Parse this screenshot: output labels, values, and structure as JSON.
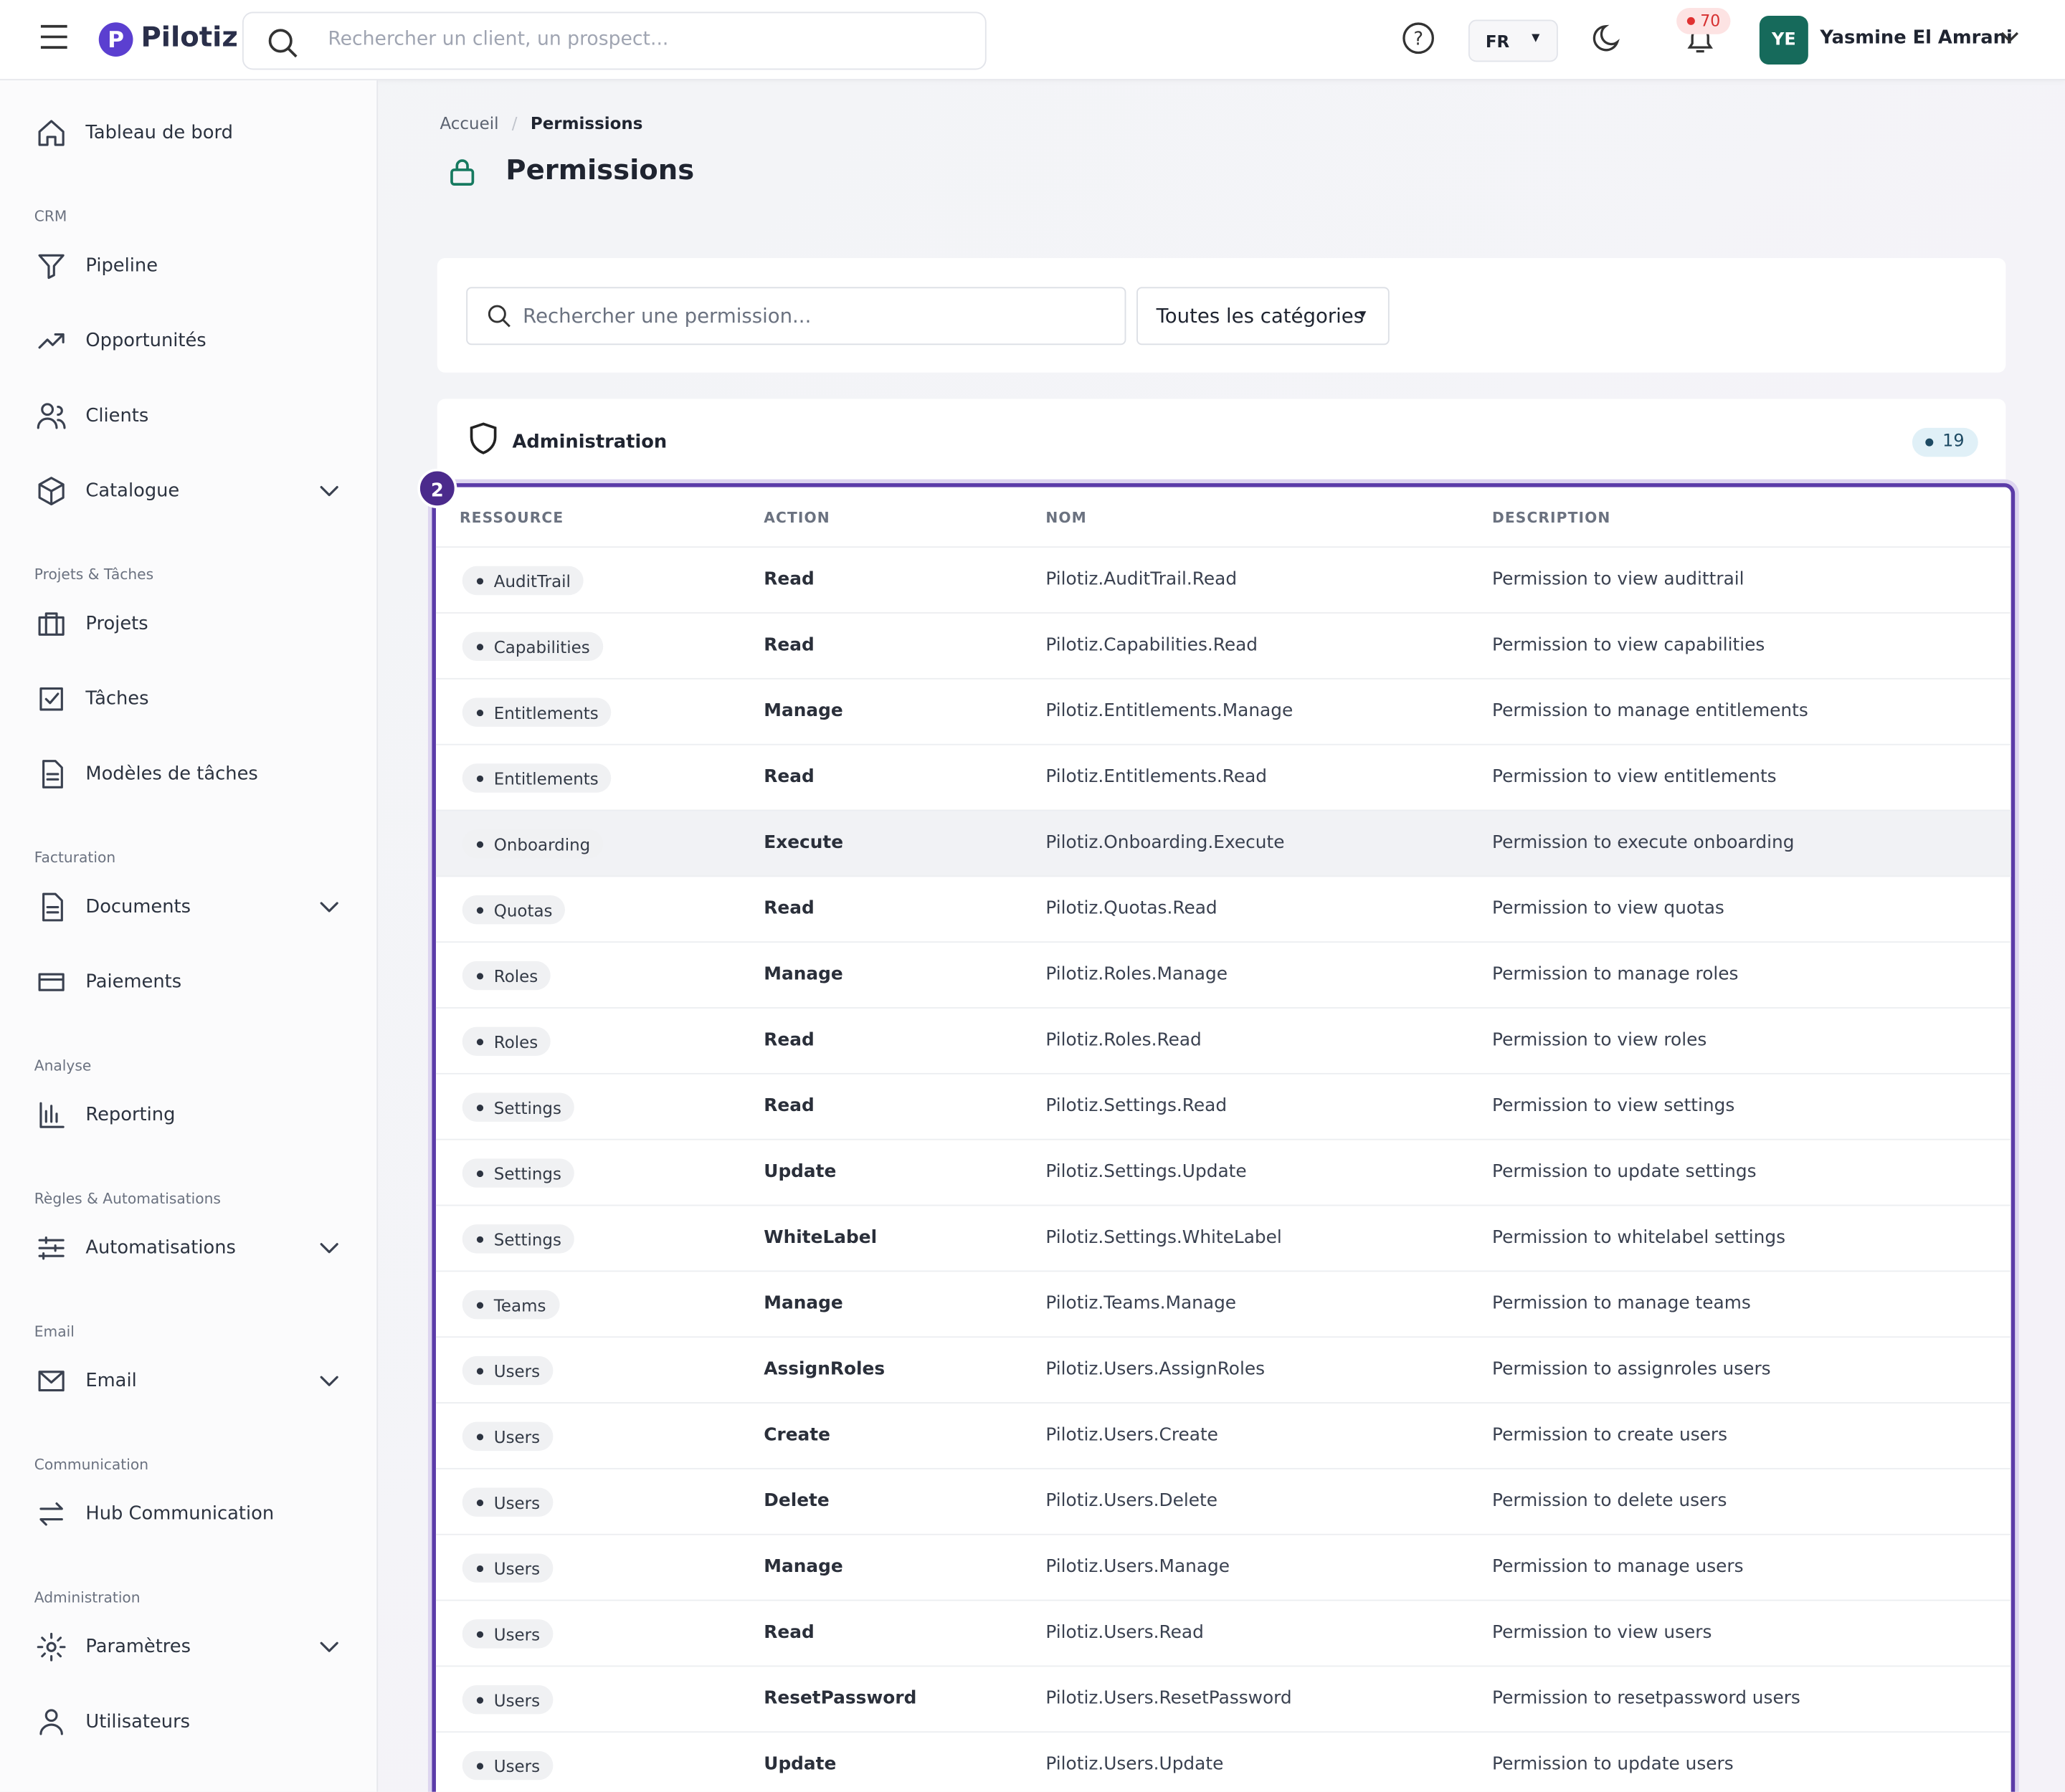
{
  "header": {
    "brand": "Pilotiz",
    "search_placeholder": "Rechercher un client, un prospect...",
    "language": "FR",
    "notifications": 70,
    "avatar_initials": "YE",
    "user_name": "Yasmine El Amrani"
  },
  "sidebar": {
    "groups": [
      {
        "items": [
          {
            "label": "Tableau de bord"
          }
        ]
      },
      {
        "label": "CRM",
        "items": [
          {
            "label": "Pipeline"
          },
          {
            "label": "Opportunités"
          },
          {
            "label": "Clients"
          },
          {
            "label": "Catalogue",
            "expandable": true
          }
        ]
      },
      {
        "label": "Projets & Tâches",
        "items": [
          {
            "label": "Projets"
          },
          {
            "label": "Tâches"
          },
          {
            "label": "Modèles de tâches"
          }
        ]
      },
      {
        "label": "Facturation",
        "items": [
          {
            "label": "Documents",
            "expandable": true
          },
          {
            "label": "Paiements"
          }
        ]
      },
      {
        "label": "Analyse",
        "items": [
          {
            "label": "Reporting"
          }
        ]
      },
      {
        "label": "Règles & Automatisations",
        "items": [
          {
            "label": "Automatisations",
            "expandable": true
          }
        ]
      },
      {
        "label": "Email",
        "items": [
          {
            "label": "Email",
            "expandable": true
          }
        ]
      },
      {
        "label": "Communication",
        "items": [
          {
            "label": "Hub Communication"
          }
        ]
      },
      {
        "label": "Administration",
        "items": [
          {
            "label": "Paramètres",
            "expandable": true
          },
          {
            "label": "Utilisateurs"
          }
        ]
      }
    ]
  },
  "breadcrumb": [
    "Accueil",
    "Permissions"
  ],
  "title": "Permissions",
  "filters": {
    "search_placeholder": "Rechercher une permission...",
    "category": "Toutes les catégories"
  },
  "group": {
    "name": "Administration",
    "count": 19,
    "marker": 2
  },
  "table": {
    "columns": [
      "RESSOURCE",
      "ACTION",
      "NOM",
      "DESCRIPTION"
    ],
    "hovered_row": 4,
    "rows": [
      [
        "AuditTrail",
        "Read",
        "Pilotiz.AuditTrail.Read",
        "Permission to view audittrail"
      ],
      [
        "Capabilities",
        "Read",
        "Pilotiz.Capabilities.Read",
        "Permission to view capabilities"
      ],
      [
        "Entitlements",
        "Manage",
        "Pilotiz.Entitlements.Manage",
        "Permission to manage entitlements"
      ],
      [
        "Entitlements",
        "Read",
        "Pilotiz.Entitlements.Read",
        "Permission to view entitlements"
      ],
      [
        "Onboarding",
        "Execute",
        "Pilotiz.Onboarding.Execute",
        "Permission to execute onboarding"
      ],
      [
        "Quotas",
        "Read",
        "Pilotiz.Quotas.Read",
        "Permission to view quotas"
      ],
      [
        "Roles",
        "Manage",
        "Pilotiz.Roles.Manage",
        "Permission to manage roles"
      ],
      [
        "Roles",
        "Read",
        "Pilotiz.Roles.Read",
        "Permission to view roles"
      ],
      [
        "Settings",
        "Read",
        "Pilotiz.Settings.Read",
        "Permission to view settings"
      ],
      [
        "Settings",
        "Update",
        "Pilotiz.Settings.Update",
        "Permission to update settings"
      ],
      [
        "Settings",
        "WhiteLabel",
        "Pilotiz.Settings.WhiteLabel",
        "Permission to whitelabel settings"
      ],
      [
        "Teams",
        "Manage",
        "Pilotiz.Teams.Manage",
        "Permission to manage teams"
      ],
      [
        "Users",
        "AssignRoles",
        "Pilotiz.Users.AssignRoles",
        "Permission to assignroles users"
      ],
      [
        "Users",
        "Create",
        "Pilotiz.Users.Create",
        "Permission to create users"
      ],
      [
        "Users",
        "Delete",
        "Pilotiz.Users.Delete",
        "Permission to delete users"
      ],
      [
        "Users",
        "Manage",
        "Pilotiz.Users.Manage",
        "Permission to manage users"
      ],
      [
        "Users",
        "Read",
        "Pilotiz.Users.Read",
        "Permission to view users"
      ],
      [
        "Users",
        "ResetPassword",
        "Pilotiz.Users.ResetPassword",
        "Permission to resetpassword users"
      ],
      [
        "Users",
        "Update",
        "Pilotiz.Users.Update",
        "Permission to update users"
      ]
    ]
  }
}
